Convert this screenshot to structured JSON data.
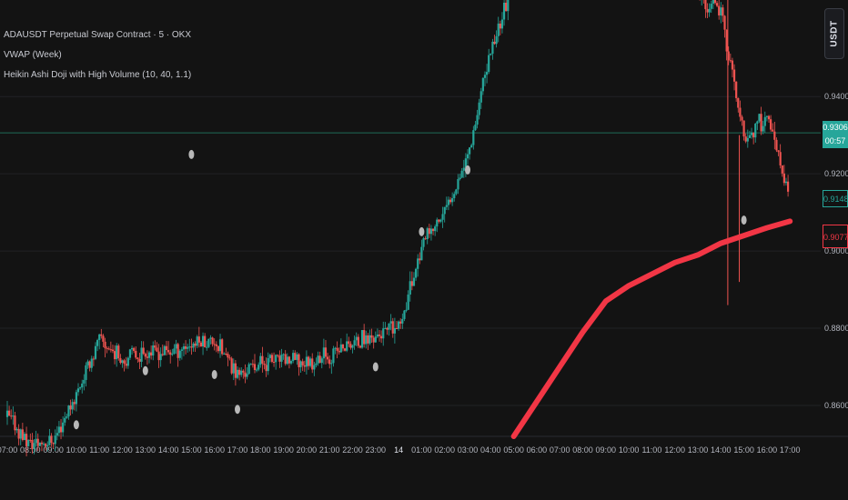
{
  "legend": {
    "symbol": "ADAUSDT Perpetual Swap Contract · 5 · OKX",
    "indicator_1": "VWAP (Week)",
    "indicator_2": "Heikin Ashi Doji with High Volume (10, 40, 1.1)"
  },
  "currency_button": "USDT",
  "price_axis": {
    "ticks": [
      "0.9400",
      "0.9200",
      "0.9000",
      "0.8800",
      "0.8600"
    ],
    "last_price": "0.9306",
    "countdown": "00:57",
    "mark_price": "0.9148",
    "vwap_value": "0.9077"
  },
  "time_axis": [
    "07:00",
    "08:00",
    "09:00",
    "10:00",
    "11:00",
    "12:00",
    "13:00",
    "14:00",
    "15:00",
    "16:00",
    "17:00",
    "18:00",
    "19:00",
    "20:00",
    "21:00",
    "22:00",
    "23:00",
    "14",
    "01:00",
    "02:00",
    "03:00",
    "04:00",
    "05:00",
    "06:00",
    "07:00",
    "08:00",
    "09:00",
    "10:00",
    "11:00",
    "12:00",
    "13:00",
    "14:00",
    "15:00",
    "16:00",
    "17:00"
  ],
  "colors": {
    "background": "#131313",
    "up": "#26a69a",
    "down": "#ef5350",
    "vwap": "#f23645",
    "grid": "#222326",
    "doji_marker": "#b8b8b8"
  },
  "chart_data": {
    "type": "candlestick",
    "symbol": "ADAUSDT",
    "interval": "5",
    "exchange": "OKX",
    "x_axis_labels": [
      "07:00",
      "08:00",
      "09:00",
      "10:00",
      "11:00",
      "12:00",
      "13:00",
      "14:00",
      "15:00",
      "16:00",
      "17:00",
      "18:00",
      "19:00",
      "20:00",
      "21:00",
      "22:00",
      "23:00",
      "14",
      "01:00",
      "02:00",
      "03:00",
      "04:00",
      "05:00",
      "06:00",
      "07:00",
      "08:00",
      "09:00",
      "10:00",
      "11:00",
      "12:00",
      "13:00",
      "14:00",
      "15:00",
      "16:00",
      "17:00"
    ],
    "y_axis_ticks": [
      0.94,
      0.92,
      0.9,
      0.88,
      0.86
    ],
    "ylim": [
      0.852,
      0.965
    ],
    "price_path": [
      {
        "x": "07:00",
        "y": 0.857
      },
      {
        "x": "08:00",
        "y": 0.85
      },
      {
        "x": "09:00",
        "y": 0.851
      },
      {
        "x": "10:00",
        "y": 0.863
      },
      {
        "x": "11:00",
        "y": 0.877
      },
      {
        "x": "12:00",
        "y": 0.872
      },
      {
        "x": "13:00",
        "y": 0.874
      },
      {
        "x": "14:00",
        "y": 0.874
      },
      {
        "x": "15:00",
        "y": 0.876
      },
      {
        "x": "16:00",
        "y": 0.877
      },
      {
        "x": "17:00",
        "y": 0.868
      },
      {
        "x": "18:00",
        "y": 0.871
      },
      {
        "x": "19:00",
        "y": 0.872
      },
      {
        "x": "20:00",
        "y": 0.871
      },
      {
        "x": "21:00",
        "y": 0.873
      },
      {
        "x": "22:00",
        "y": 0.876
      },
      {
        "x": "23:00",
        "y": 0.878
      },
      {
        "x": "14",
        "y": 0.88
      },
      {
        "x": "01:00",
        "y": 0.901
      },
      {
        "x": "02:00",
        "y": 0.91
      },
      {
        "x": "03:00",
        "y": 0.925
      },
      {
        "x": "04:00",
        "y": 0.952
      },
      {
        "x": "05:00",
        "y": 0.97
      },
      {
        "x": "13:00",
        "y": 0.966
      },
      {
        "x": "14:00",
        "y": 0.962
      },
      {
        "x": "15:00",
        "y": 0.929
      },
      {
        "x": "16:00",
        "y": 0.935
      },
      {
        "x": "17:00",
        "y": 0.913
      }
    ],
    "vwap_path": [
      {
        "x": "05:00",
        "y": 0.852
      },
      {
        "x": "06:00",
        "y": 0.861
      },
      {
        "x": "07:00",
        "y": 0.87
      },
      {
        "x": "08:00",
        "y": 0.879
      },
      {
        "x": "09:00",
        "y": 0.887
      },
      {
        "x": "10:00",
        "y": 0.891
      },
      {
        "x": "11:00",
        "y": 0.894
      },
      {
        "x": "12:00",
        "y": 0.897
      },
      {
        "x": "13:00",
        "y": 0.899
      },
      {
        "x": "14:00",
        "y": 0.902
      },
      {
        "x": "15:00",
        "y": 0.904
      },
      {
        "x": "16:00",
        "y": 0.906
      },
      {
        "x": "17:00",
        "y": 0.9077
      }
    ],
    "horizontal_line": 0.9306,
    "doji_markers": [
      {
        "x": "10:00",
        "y": 0.855
      },
      {
        "x": "13:00",
        "y": 0.869
      },
      {
        "x": "16:00",
        "y": 0.868
      },
      {
        "x": "17:00",
        "y": 0.859
      },
      {
        "x": "23:00",
        "y": 0.87
      },
      {
        "x": "01:00",
        "y": 0.905
      },
      {
        "x": "03:00",
        "y": 0.921
      },
      {
        "x": "15:00",
        "y": 0.908
      },
      {
        "x": "15:00",
        "y": 0.925
      }
    ]
  }
}
